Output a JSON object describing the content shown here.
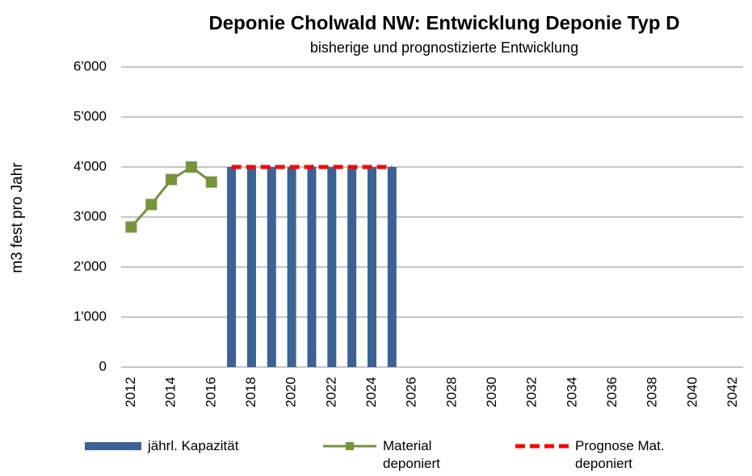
{
  "chart_data": {
    "type": "bar",
    "title": "Deponie Cholwald NW:  Entwicklung Deponie Typ D",
    "subtitle": "bisherige und prognostizierte Entwicklung",
    "y_axis_label": "m3 fest pro Jahr",
    "categories": [
      "2012",
      null,
      "2014",
      null,
      "2016",
      null,
      "2018",
      null,
      "2020",
      null,
      "2022",
      null,
      "2024",
      null,
      "2026",
      null,
      "2028",
      null,
      "2030",
      null,
      "2032",
      null,
      "2034",
      null,
      "2036",
      null,
      "2038",
      null,
      "2040",
      null,
      "2042"
    ],
    "series": [
      {
        "name": "jährl. Kapazität",
        "type": "bar",
        "color": "#3c6295",
        "values": [
          null,
          null,
          null,
          null,
          null,
          4000,
          4000,
          4000,
          4000,
          4000,
          4000,
          4000,
          4000,
          4000,
          null,
          null,
          null,
          null,
          null,
          null,
          null,
          null,
          null,
          null,
          null,
          null,
          null,
          null,
          null,
          null,
          null
        ]
      },
      {
        "name": "Material deponiert",
        "type": "line",
        "color": "#77933c",
        "values": [
          2800,
          3250,
          3750,
          4000,
          3700,
          null,
          null,
          null,
          null,
          null,
          null,
          null,
          null,
          null,
          null,
          null,
          null,
          null,
          null,
          null,
          null,
          null,
          null,
          null,
          null,
          null,
          null,
          null,
          null,
          null,
          null
        ]
      },
      {
        "name": "Prognose Mat. deponiert",
        "type": "line",
        "dashed": true,
        "color": "#ff0000",
        "values": [
          null,
          null,
          null,
          null,
          null,
          4000,
          4000,
          4000,
          4000,
          4000,
          4000,
          4000,
          4000,
          4000,
          null,
          null,
          null,
          null,
          null,
          null,
          null,
          null,
          null,
          null,
          null,
          null,
          null,
          null,
          null,
          null,
          null
        ]
      }
    ],
    "ylim": [
      0,
      6000
    ],
    "yticks": [
      0,
      {
        "value": 1000,
        "label": "1'000"
      },
      {
        "value": 2000,
        "label": "2'000"
      },
      {
        "value": 3000,
        "label": "3'000"
      },
      {
        "value": 4000,
        "label": "4'000"
      },
      {
        "value": 5000,
        "label": "5'000"
      },
      {
        "value": 6000,
        "label": "6'000"
      }
    ],
    "grid": true,
    "legend": "bottom"
  }
}
